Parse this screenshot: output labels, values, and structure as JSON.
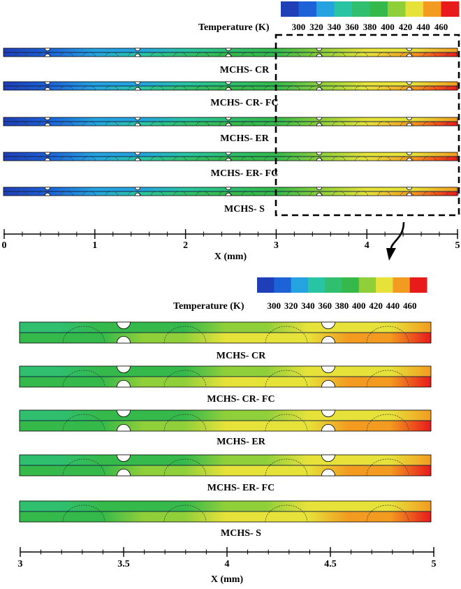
{
  "colorbar": {
    "label": "Temperature (K)",
    "ticks": [
      "300",
      "320",
      "340",
      "360",
      "380",
      "400",
      "420",
      "440",
      "460"
    ],
    "colors": [
      "#1f3fb8",
      "#1d62d6",
      "#24a3e0",
      "#29c4a4",
      "#2fbf6e",
      "#34b94a",
      "#8fcf3a",
      "#e6e23a",
      "#f29b20",
      "#e81a1a"
    ]
  },
  "top_panel": {
    "x_axis": {
      "label": "X (mm)",
      "ticks": [
        "0",
        "1",
        "2",
        "3",
        "4",
        "5"
      ]
    },
    "channels": [
      {
        "name": "MCHS- CR",
        "shade": 0.35
      },
      {
        "name": "MCHS- CR- FC",
        "shade": 0.45
      },
      {
        "name": "MCHS- ER",
        "shade": 0.35
      },
      {
        "name": "MCHS- ER- FC",
        "shade": 0.45
      },
      {
        "name": "MCHS- S",
        "shade": 0.3
      }
    ]
  },
  "bottom_panel": {
    "x_axis": {
      "label": "X (mm)",
      "ticks": [
        "3",
        "3.5",
        "4",
        "4.5",
        "5"
      ]
    },
    "channels": [
      {
        "name": "MCHS- CR",
        "shade": 0.6
      },
      {
        "name": "MCHS- CR- FC",
        "shade": 0.7
      },
      {
        "name": "MCHS- ER",
        "shade": 0.62
      },
      {
        "name": "MCHS- ER- FC",
        "shade": 0.68
      },
      {
        "name": "MCHS- S",
        "shade": 0.55
      }
    ]
  }
}
